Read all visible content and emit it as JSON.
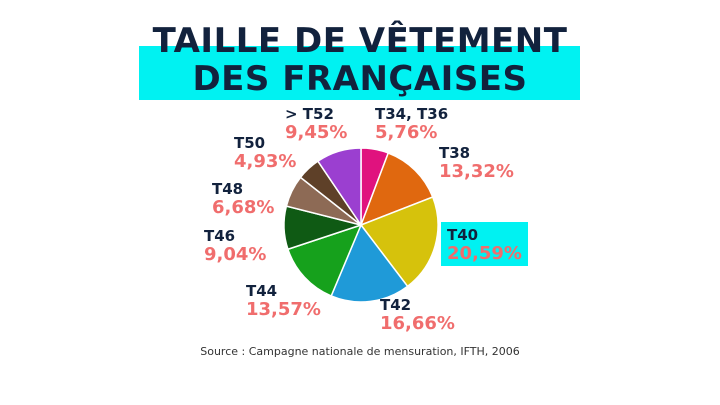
{
  "title": {
    "line1": "TAILLE DE VÊTEMENT",
    "line2": "DES FRANÇAISES"
  },
  "source": "Source : Campagne nationale de mensuration, IFTH, 2006",
  "chart_data": {
    "type": "pie",
    "title": "TAILLE DE VÊTEMENT DES FRANÇAISES",
    "slices": [
      {
        "label": "T34, T36",
        "value": 5.76,
        "display": "5,76%",
        "color": "#e0127e"
      },
      {
        "label": "T38",
        "value": 13.32,
        "display": "13,32%",
        "color": "#e0680f"
      },
      {
        "label": "T40",
        "value": 20.59,
        "display": "20,59%",
        "color": "#d6c20c",
        "highlighted": true
      },
      {
        "label": "T42",
        "value": 16.66,
        "display": "16,66%",
        "color": "#1f9ad8"
      },
      {
        "label": "T44",
        "value": 13.57,
        "display": "13,57%",
        "color": "#16a11c"
      },
      {
        "label": "T46",
        "value": 9.04,
        "display": "9,04%",
        "color": "#0f5a14"
      },
      {
        "label": "T48",
        "value": 6.68,
        "display": "6,68%",
        "color": "#8d6a55"
      },
      {
        "label": "T50",
        "value": 4.93,
        "display": "4,93%",
        "color": "#5e4028"
      },
      {
        "label": "> T52",
        "value": 9.45,
        "display": "9,45%",
        "color": "#9b3fd0"
      }
    ],
    "label_color": "#12223d",
    "value_color": "#f06d6d",
    "highlight_color": "#00f2f2"
  }
}
